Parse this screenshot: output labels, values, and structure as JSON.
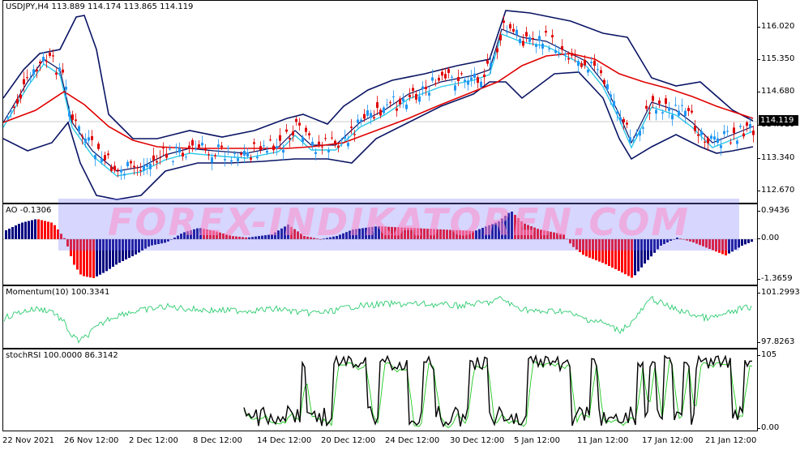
{
  "price_pane": {
    "label": "USDJPY,H4  113.889 114.174 113.865 114.119",
    "ticks": [
      "116.020",
      "115.350",
      "114.680",
      "114.010",
      "113.340",
      "112.670"
    ],
    "current_price": "114.119"
  },
  "ao_pane": {
    "label": "AO -0.1306",
    "ticks": [
      "0.9436",
      "0.00",
      "-1.3659"
    ]
  },
  "momentum_pane": {
    "label": "Momentum(10) 100.3341",
    "ticks": [
      "101.2993",
      "97.8263"
    ]
  },
  "stochrsi_pane": {
    "label": "stochRSI 100.0000 86.3142",
    "ticks": [
      "105",
      "0.00"
    ]
  },
  "watermark": "FOREX-INDIKATOREN.COM",
  "x_axis": [
    "22 Nov 2021",
    "26 Nov 12:00",
    "2 Dec 12:00",
    "8 Dec 12:00",
    "14 Dec 12:00",
    "20 Dec 12:00",
    "24 Dec 12:00",
    "30 Dec 12:00",
    "5 Jan 12:00",
    "11 Jan 12:00",
    "17 Jan 12:00",
    "21 Jan 12:00"
  ],
  "colors": {
    "bull_candle": "#2196f3",
    "bear_candle": "#e00000",
    "bollinger": "#0a1464",
    "ema_fast": "#29c8e8",
    "ma_slow": "#e00000",
    "ao_up": "#000080",
    "ao_down": "#ff0000",
    "momentum": "#2ecc71",
    "stoch_k": "#000000",
    "stoch_d": "#1ec81e"
  }
}
